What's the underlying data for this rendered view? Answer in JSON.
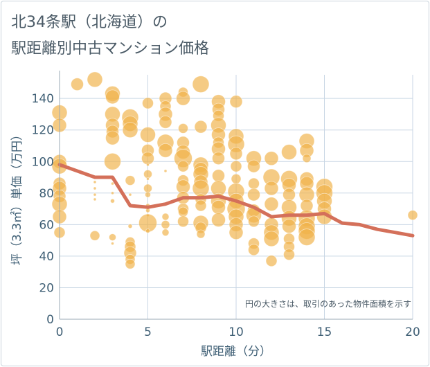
{
  "title_line1": "北34条駅（北海道）の",
  "title_line2": "駅距離別中古マンション価格",
  "chart_data": {
    "type": "scatter",
    "xlabel": "駅距離（分）",
    "ylabel": "坪（3.3㎡）単価（万円）",
    "xlim": [
      0,
      20
    ],
    "ylim": [
      0,
      155
    ],
    "xticks": [
      0,
      5,
      10,
      15,
      20
    ],
    "yticks": [
      0,
      20,
      40,
      60,
      80,
      100,
      120,
      140
    ],
    "grid": true,
    "note": "円の大きさは、取引のあった物件面積を示す",
    "colors": {
      "bubble": "#f0b24a",
      "line": "#d4705a",
      "grid": "#c8d6e4",
      "text": "#3f5f75"
    },
    "bubbles": [
      [
        0,
        131,
        11
      ],
      [
        0,
        123,
        10
      ],
      [
        0,
        100,
        10
      ],
      [
        0,
        97,
        11
      ],
      [
        0,
        86,
        9
      ],
      [
        0,
        83,
        10
      ],
      [
        0,
        78,
        9
      ],
      [
        0,
        73,
        11
      ],
      [
        0,
        65,
        10
      ],
      [
        0,
        55,
        8
      ],
      [
        1,
        149,
        9
      ],
      [
        2,
        152,
        11
      ],
      [
        2,
        53,
        7
      ],
      [
        2,
        90,
        2
      ],
      [
        2,
        87,
        2
      ],
      [
        2,
        83,
        2
      ],
      [
        2,
        79,
        2
      ],
      [
        2,
        76,
        2
      ],
      [
        3,
        143,
        11
      ],
      [
        3,
        141,
        10
      ],
      [
        3,
        130,
        11
      ],
      [
        3,
        123,
        10
      ],
      [
        3,
        119,
        9
      ],
      [
        3,
        115,
        10
      ],
      [
        3,
        100,
        12
      ],
      [
        3,
        89,
        2
      ],
      [
        3,
        86,
        2
      ],
      [
        3,
        80,
        2
      ],
      [
        3,
        75,
        3
      ],
      [
        3,
        52,
        5
      ],
      [
        3,
        48,
        2
      ],
      [
        4,
        128,
        12
      ],
      [
        4,
        124,
        11
      ],
      [
        4,
        120,
        11
      ],
      [
        4,
        88,
        7
      ],
      [
        4,
        79,
        2
      ],
      [
        4,
        72,
        2
      ],
      [
        4,
        59,
        3
      ],
      [
        4,
        49,
        7
      ],
      [
        4,
        46,
        8
      ],
      [
        4,
        42,
        9
      ],
      [
        4,
        38,
        7
      ],
      [
        4,
        35,
        7
      ],
      [
        5,
        137,
        8
      ],
      [
        5,
        117,
        11
      ],
      [
        5,
        107,
        9
      ],
      [
        5,
        102,
        9
      ],
      [
        5,
        98,
        2
      ],
      [
        5,
        92,
        6
      ],
      [
        5,
        89,
        2
      ],
      [
        5,
        83,
        6
      ],
      [
        5,
        79,
        4
      ],
      [
        5,
        72,
        3
      ],
      [
        5,
        69,
        3
      ],
      [
        5,
        66,
        2
      ],
      [
        5,
        61,
        13
      ],
      [
        5,
        56,
        3
      ],
      [
        6,
        140,
        9
      ],
      [
        6,
        135,
        8
      ],
      [
        6,
        130,
        10
      ],
      [
        6,
        125,
        9
      ],
      [
        6,
        112,
        12
      ],
      [
        6,
        107,
        10
      ],
      [
        6,
        94,
        2
      ],
      [
        6,
        65,
        5
      ],
      [
        6,
        60,
        6
      ],
      [
        6,
        55,
        5
      ],
      [
        7,
        144,
        7
      ],
      [
        7,
        140,
        10
      ],
      [
        7,
        121,
        7
      ],
      [
        7,
        112,
        9
      ],
      [
        7,
        106,
        10
      ],
      [
        7,
        102,
        13
      ],
      [
        7,
        97,
        8
      ],
      [
        7,
        88,
        8
      ],
      [
        7,
        84,
        10
      ],
      [
        7,
        77,
        9
      ],
      [
        7,
        70,
        8
      ],
      [
        7,
        68,
        7
      ],
      [
        7,
        62,
        8
      ],
      [
        8,
        149,
        12
      ],
      [
        8,
        122,
        9
      ],
      [
        8,
        98,
        11
      ],
      [
        8,
        95,
        10
      ],
      [
        8,
        92,
        11
      ],
      [
        8,
        87,
        10
      ],
      [
        8,
        83,
        12
      ],
      [
        8,
        76,
        8
      ],
      [
        8,
        72,
        8
      ],
      [
        8,
        61,
        11
      ],
      [
        8,
        58,
        8
      ],
      [
        8,
        54,
        6
      ],
      [
        9,
        138,
        10
      ],
      [
        9,
        133,
        9
      ],
      [
        9,
        129,
        8
      ],
      [
        9,
        123,
        11
      ],
      [
        9,
        117,
        10
      ],
      [
        9,
        112,
        8
      ],
      [
        9,
        108,
        10
      ],
      [
        9,
        102,
        9
      ],
      [
        9,
        91,
        9
      ],
      [
        9,
        83,
        11
      ],
      [
        9,
        75,
        11
      ],
      [
        9,
        71,
        10
      ],
      [
        9,
        63,
        10
      ],
      [
        10,
        138,
        9
      ],
      [
        10,
        116,
        11
      ],
      [
        10,
        111,
        12
      ],
      [
        10,
        105,
        9
      ],
      [
        10,
        97,
        8
      ],
      [
        10,
        89,
        7
      ],
      [
        10,
        81,
        12
      ],
      [
        10,
        75,
        11
      ],
      [
        10,
        70,
        13
      ],
      [
        10,
        65,
        11
      ],
      [
        10,
        60,
        10
      ],
      [
        10,
        55,
        10
      ],
      [
        11,
        102,
        11
      ],
      [
        11,
        97,
        9
      ],
      [
        11,
        86,
        8
      ],
      [
        11,
        79,
        9
      ],
      [
        11,
        69,
        9
      ],
      [
        11,
        66,
        11
      ],
      [
        11,
        62,
        8
      ],
      [
        11,
        48,
        8
      ],
      [
        11,
        44,
        8
      ],
      [
        12,
        102,
        10
      ],
      [
        12,
        90,
        12
      ],
      [
        12,
        83,
        10
      ],
      [
        12,
        73,
        10
      ],
      [
        12,
        60,
        10
      ],
      [
        12,
        55,
        11
      ],
      [
        12,
        51,
        11
      ],
      [
        12,
        37,
        8
      ],
      [
        13,
        106,
        11
      ],
      [
        13,
        89,
        12
      ],
      [
        13,
        85,
        10
      ],
      [
        13,
        79,
        9
      ],
      [
        13,
        71,
        11
      ],
      [
        13,
        64,
        11
      ],
      [
        13,
        59,
        10
      ],
      [
        13,
        51,
        8
      ],
      [
        13,
        46,
        8
      ],
      [
        13,
        41,
        8
      ],
      [
        14,
        113,
        11
      ],
      [
        14,
        107,
        10
      ],
      [
        14,
        102,
        6
      ],
      [
        14,
        89,
        10
      ],
      [
        14,
        86,
        10
      ],
      [
        14,
        79,
        11
      ],
      [
        14,
        72,
        9
      ],
      [
        14,
        64,
        12
      ],
      [
        14,
        59,
        12
      ],
      [
        14,
        56,
        12
      ],
      [
        14,
        52,
        12
      ],
      [
        15,
        84,
        12
      ],
      [
        15,
        80,
        12
      ],
      [
        15,
        75,
        11
      ],
      [
        15,
        70,
        10
      ],
      [
        15,
        65,
        11
      ],
      [
        20,
        66,
        7
      ]
    ],
    "trend_line": {
      "x": [
        0,
        2,
        3,
        4,
        5,
        6,
        7,
        8,
        9,
        10,
        11,
        12,
        13,
        14,
        15,
        16,
        17,
        18,
        19,
        20
      ],
      "y": [
        98,
        90,
        90,
        72,
        71,
        73,
        77,
        77,
        78,
        75,
        71,
        65,
        66,
        66,
        67,
        61,
        60,
        57,
        55,
        53
      ]
    }
  }
}
